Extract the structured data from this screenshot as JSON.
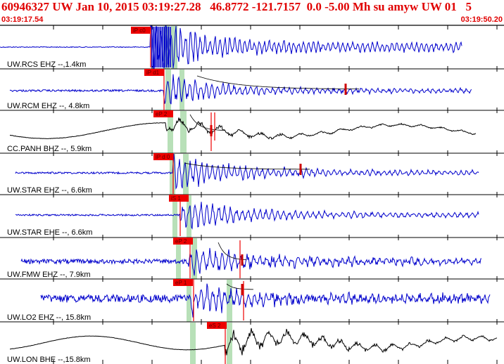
{
  "header": {
    "title": "60946327 UW Jan 10, 2015 03:19:27.28   46.8772 -121.7157  0.0 -5.00 Mh su amyw UW 01   5",
    "start_time": "03:19:17.54",
    "end_time": "03:19:50.20"
  },
  "colors": {
    "header_text": "#e00000",
    "trace_blue": "#0000cc",
    "trace_black": "#000000",
    "pick_box": "#ee0000",
    "window_green": "#b8e0b8",
    "fit_curve": "#cc0000"
  },
  "traces": [
    {
      "label": "UW.RCS EHZ --,1.4km",
      "pick": "iP c0",
      "color": "blue"
    },
    {
      "label": "UW.RCM EHZ --, 4.8km",
      "pick": "iP d1",
      "color": "blue"
    },
    {
      "label": "CC.PANH BHZ --, 5.9km",
      "pick": "eP 2",
      "color": "black"
    },
    {
      "label": "UW.STAR EHZ --, 6.6km",
      "pick": "iP d 0",
      "color": "blue"
    },
    {
      "label": "UW.STAR EHE --, 6.6km",
      "pick": "iS 1",
      "color": "blue"
    },
    {
      "label": "UW.FMW EHZ --, 7.9km",
      "pick": "eP 2",
      "color": "blue"
    },
    {
      "label": "UW.LO2 EHZ --, 15.8km",
      "pick": "eP 1",
      "color": "blue"
    },
    {
      "label": "UW.LON BHE --,15.8km",
      "pick": "eS 2",
      "color": "black"
    }
  ]
}
